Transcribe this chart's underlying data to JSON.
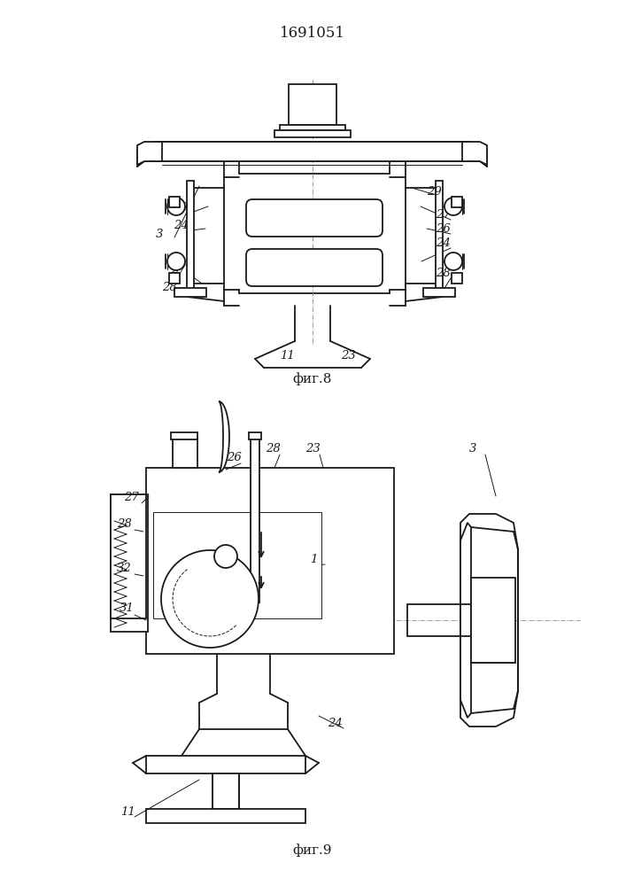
{
  "title": "1691051",
  "fig8_caption": "фиг.8",
  "fig9_caption": "фиг.9",
  "bg_color": "#ffffff",
  "lc": "#1a1a1a",
  "lw": 1.3,
  "tlw": 0.7
}
